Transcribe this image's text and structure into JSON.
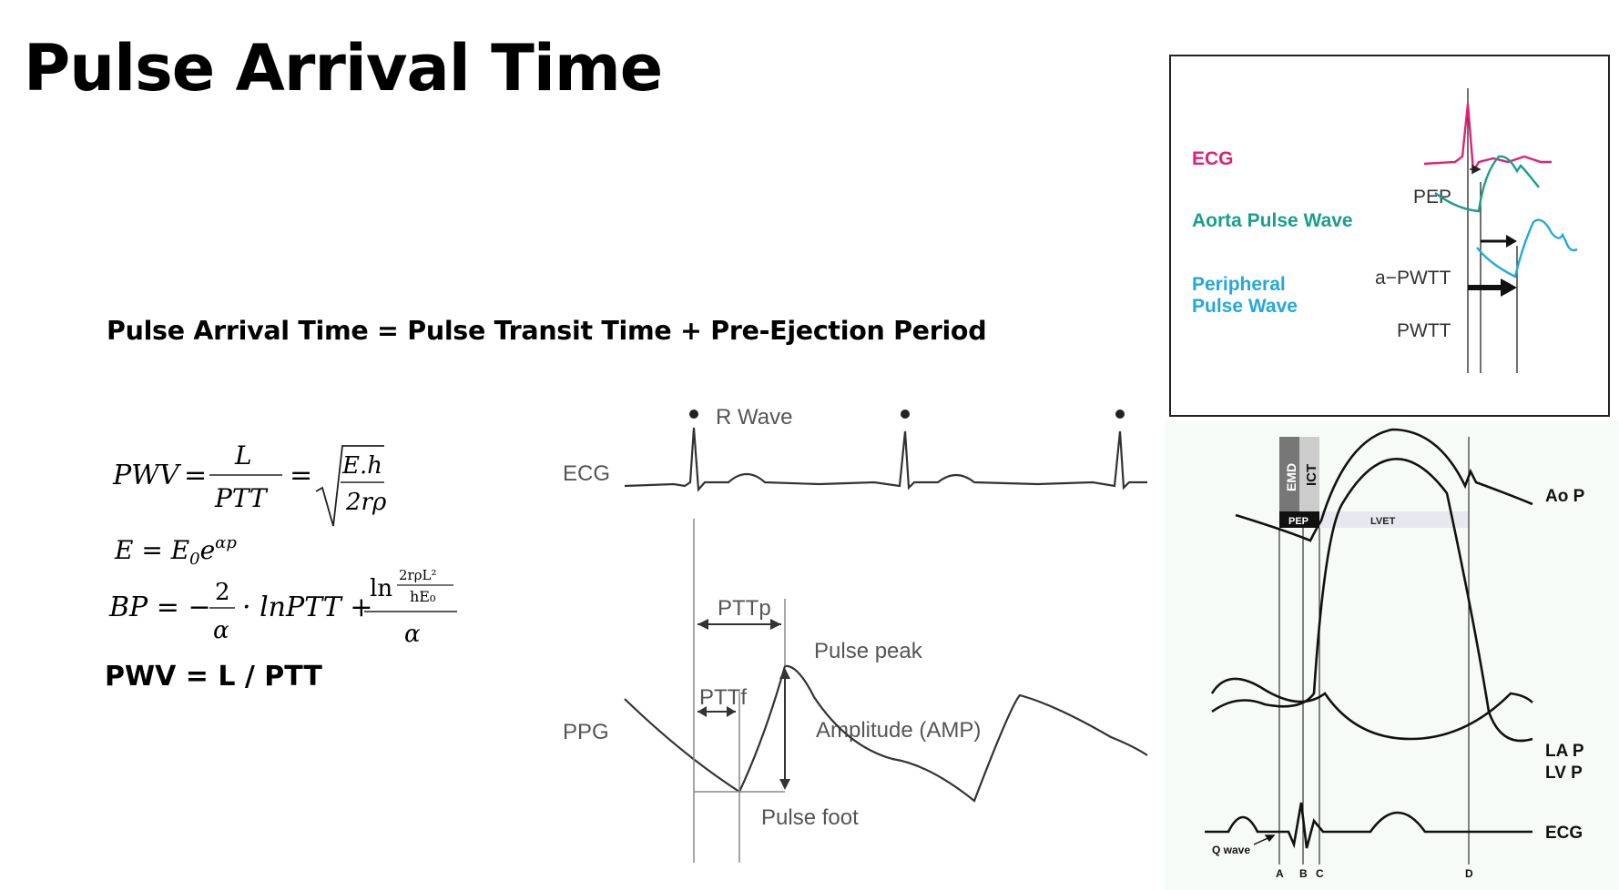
{
  "slide": {
    "title": "Pulse Arrival Time",
    "equation": "Pulse Arrival Time = Pulse Transit Time + Pre-Ejection Period",
    "pwv_simple": "PWV = L / PTT"
  },
  "formulas": {
    "pwv_lhs": "PWV",
    "eq": "=",
    "pwv_num": "L",
    "pwv_den": "PTT",
    "sqrt_num": "E.h",
    "sqrt_den": "2rρ",
    "e_lhs": "E = E",
    "e_sub": "0",
    "e_base": "e",
    "e_exp": "αp",
    "bp_lhs": "BP = −",
    "bp_frac_num": "2",
    "bp_frac_den": "α",
    "bp_mid": "· lnPTT +",
    "bp_ln": "ln",
    "bp_inner_num": "2rρL²",
    "bp_inner_den": "hE₀",
    "bp_outer_den": "α"
  },
  "ptt_diagram": {
    "ecg_label": "ECG",
    "ppg_label": "PPG",
    "r_wave": "R Wave",
    "pttp": "PTTp",
    "pttf": "PTTf",
    "pulse_peak": "Pulse peak",
    "amplitude": "Amplitude (AMP)",
    "pulse_foot": "Pulse foot"
  },
  "pwtt_panel": {
    "ecg": "ECG",
    "aorta": "Aorta Pulse Wave",
    "peripheral_line1": "Peripheral",
    "peripheral_line2": "Pulse Wave",
    "pep": "PEP",
    "a_pwtt": "a−PWTT",
    "pwtt": "PWTT",
    "colors": {
      "ecg": "#e0207a",
      "aorta": "#1a9e8c",
      "peripheral": "#22a8e0"
    }
  },
  "cardiac_cycle": {
    "emd": "EMD",
    "ict": "ICT",
    "pep": "PEP",
    "lvet": "LVET",
    "ao_p": "Ao P",
    "la_p": "LA P",
    "lv_p": "LV P",
    "ecg": "ECG",
    "q_wave": "Q wave",
    "markers": [
      "A",
      "B",
      "C",
      "D"
    ]
  }
}
